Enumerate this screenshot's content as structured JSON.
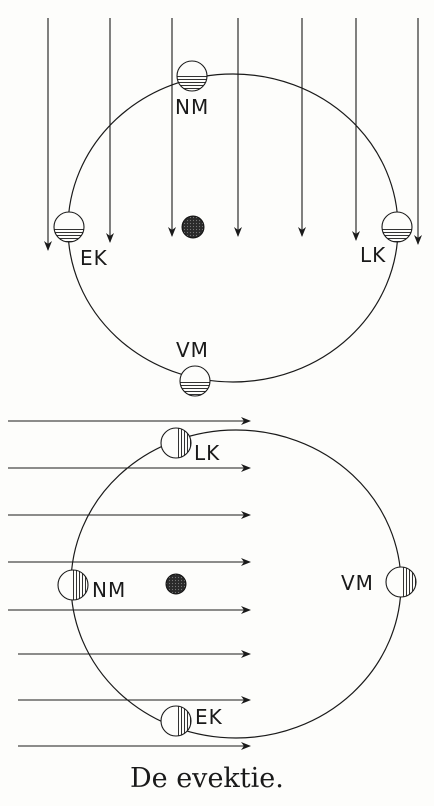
{
  "caption": "De evektie.",
  "top_diagram": {
    "label_nm": "NM",
    "label_ek": "EK",
    "label_lk": "LK",
    "label_vm": "VM"
  },
  "bottom_diagram": {
    "label_lk": "LK",
    "label_nm": "NM",
    "label_vm": "VM",
    "label_ek": "EK"
  },
  "colors": {
    "ink": "#1a1a1a",
    "paper": "#fdfdfb"
  }
}
